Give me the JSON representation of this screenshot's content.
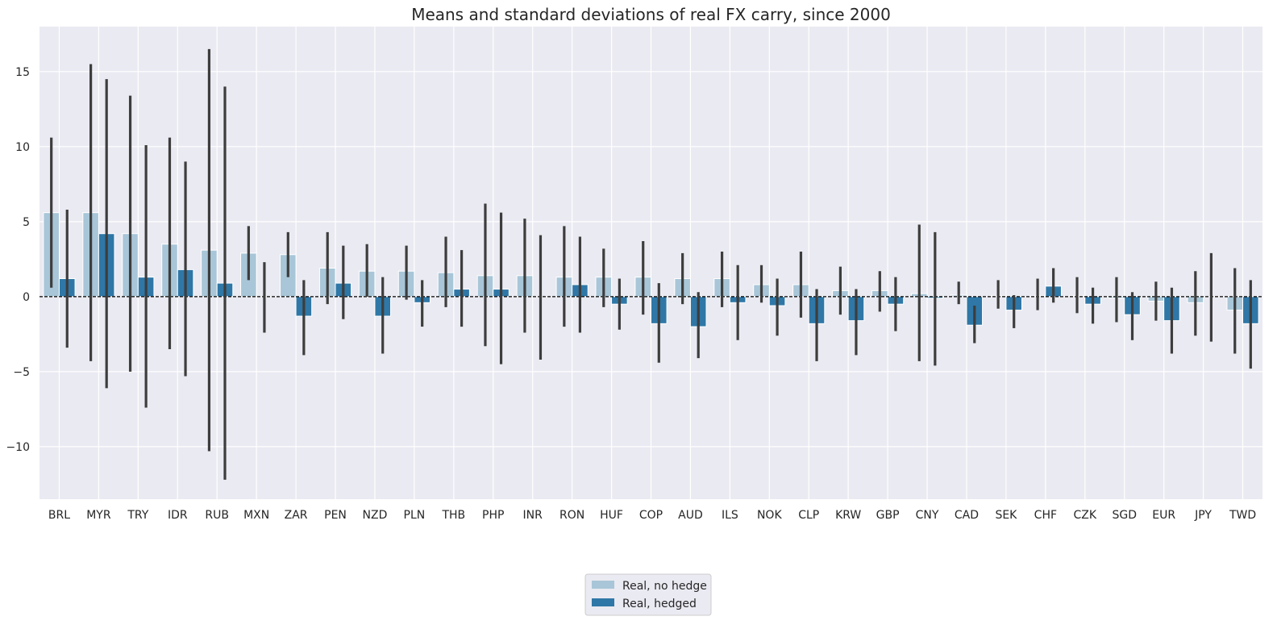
{
  "chart_data": {
    "type": "bar",
    "title": "Means and standard deviations of real FX carry, since 2000",
    "xlabel": "",
    "ylabel": "",
    "ylim": [
      -13.5,
      18
    ],
    "yticks": [
      -10,
      -5,
      0,
      5,
      10,
      15
    ],
    "ytick_labels": [
      "−10",
      "−5",
      "0",
      "5",
      "10",
      "15"
    ],
    "categories": [
      "BRL",
      "MYR",
      "TRY",
      "IDR",
      "RUB",
      "MXN",
      "ZAR",
      "PEN",
      "NZD",
      "PLN",
      "THB",
      "PHP",
      "INR",
      "RON",
      "HUF",
      "COP",
      "AUD",
      "ILS",
      "NOK",
      "CLP",
      "KRW",
      "GBP",
      "CNY",
      "CAD",
      "SEK",
      "CHF",
      "CZK",
      "SGD",
      "EUR",
      "JPY",
      "TWD"
    ],
    "series": [
      {
        "name": "Real, no hedge",
        "color": "#a8c6d8",
        "values": [
          5.6,
          5.6,
          4.2,
          3.5,
          3.1,
          2.9,
          2.8,
          1.9,
          1.7,
          1.7,
          1.6,
          1.4,
          1.4,
          1.3,
          1.3,
          1.3,
          1.2,
          1.2,
          0.8,
          0.8,
          0.4,
          0.4,
          0.2,
          0.1,
          0.05,
          0.05,
          0.05,
          -0.1,
          -0.3,
          -0.4,
          -0.9
        ],
        "err_low": [
          0.6,
          -4.3,
          -5.0,
          -3.5,
          -10.3,
          1.1,
          1.3,
          -0.5,
          0.0,
          -0.2,
          -0.7,
          -3.3,
          -2.4,
          -2.0,
          -0.7,
          -1.2,
          -0.5,
          -0.7,
          -0.4,
          -1.4,
          -1.2,
          -1.0,
          -4.3,
          -0.5,
          -0.8,
          -0.9,
          -1.1,
          -1.7,
          -1.6,
          -2.6,
          -3.8
        ],
        "err_high": [
          10.6,
          15.5,
          13.4,
          10.6,
          16.5,
          4.7,
          4.3,
          4.3,
          3.5,
          3.4,
          4.0,
          6.2,
          5.2,
          4.7,
          3.2,
          3.7,
          2.9,
          3.0,
          2.1,
          3.0,
          2.0,
          1.7,
          4.8,
          1.0,
          1.1,
          1.2,
          1.3,
          1.3,
          1.0,
          1.7,
          1.9
        ]
      },
      {
        "name": "Real, hedged",
        "color": "#2f77a6",
        "values": [
          1.2,
          4.2,
          1.3,
          1.8,
          0.9,
          0.0,
          -1.3,
          0.9,
          -1.3,
          -0.4,
          0.5,
          0.5,
          0.0,
          0.8,
          -0.5,
          -1.8,
          -2.0,
          -0.4,
          -0.6,
          -1.8,
          -1.6,
          -0.5,
          -0.1,
          -1.9,
          -0.9,
          0.7,
          -0.5,
          -1.2,
          -1.6,
          0.0,
          -1.8
        ],
        "err_low": [
          -3.4,
          -6.1,
          -7.4,
          -5.3,
          -12.2,
          -2.4,
          -3.9,
          -1.5,
          -3.8,
          -2.0,
          -2.0,
          -4.5,
          -4.2,
          -2.4,
          -2.2,
          -4.4,
          -4.1,
          -2.9,
          -2.6,
          -4.3,
          -3.9,
          -2.3,
          -4.6,
          -3.1,
          -2.1,
          -0.4,
          -1.8,
          -2.9,
          -3.8,
          -3.0,
          -4.8
        ],
        "err_high": [
          5.8,
          14.5,
          10.1,
          9.0,
          14.0,
          2.3,
          1.1,
          3.4,
          1.3,
          1.1,
          3.1,
          5.6,
          4.1,
          4.0,
          1.2,
          0.9,
          0.3,
          2.1,
          1.2,
          0.5,
          0.5,
          1.3,
          4.3,
          -0.6,
          0.1,
          1.9,
          0.6,
          0.3,
          0.6,
          2.9,
          1.1
        ]
      }
    ],
    "legend_position": "bottom-center",
    "zero_line": "dashed"
  }
}
